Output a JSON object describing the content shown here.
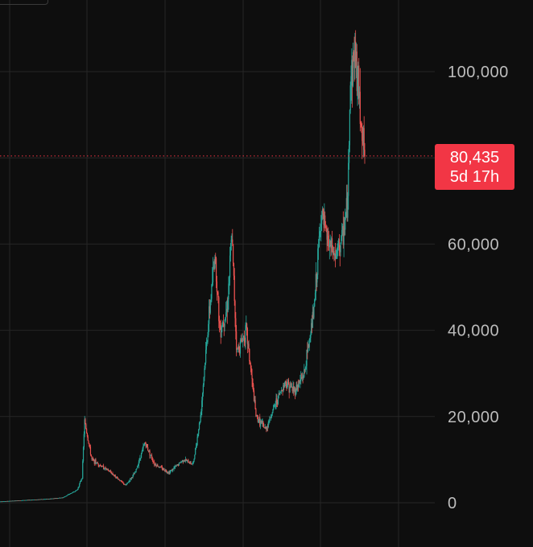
{
  "chart_data": {
    "type": "candlestick",
    "ylim": [
      0,
      110000
    ],
    "yticks": [
      {
        "value": 0,
        "label": "0"
      },
      {
        "value": 20000,
        "label": "20,000"
      },
      {
        "value": 40000,
        "label": "40,000"
      },
      {
        "value": 60000,
        "label": "60,000"
      },
      {
        "value": 100000,
        "label": "100,000"
      }
    ],
    "grid": true,
    "current_price": {
      "value": 80435,
      "label": "80,435",
      "countdown": "5d 17h"
    },
    "colors": {
      "up": "#26a69a",
      "down": "#ef5350",
      "background": "#0e0e0e",
      "grid": "#262626",
      "price_line": "#f23645"
    },
    "close_path": [
      [
        0,
        300
      ],
      [
        0.05,
        600
      ],
      [
        0.1,
        900
      ],
      [
        0.13,
        1200
      ],
      [
        0.16,
        3000
      ],
      [
        0.17,
        6000
      ],
      [
        0.175,
        19000
      ],
      [
        0.19,
        10000
      ],
      [
        0.23,
        7000
      ],
      [
        0.26,
        4000
      ],
      [
        0.28,
        7000
      ],
      [
        0.3,
        14000
      ],
      [
        0.32,
        9000
      ],
      [
        0.35,
        7000
      ],
      [
        0.38,
        10000
      ],
      [
        0.4,
        9000
      ],
      [
        0.415,
        20000
      ],
      [
        0.43,
        40000
      ],
      [
        0.445,
        58000
      ],
      [
        0.455,
        40000
      ],
      [
        0.47,
        45000
      ],
      [
        0.48,
        62000
      ],
      [
        0.49,
        35000
      ],
      [
        0.51,
        40000
      ],
      [
        0.53,
        20000
      ],
      [
        0.55,
        17000
      ],
      [
        0.57,
        23000
      ],
      [
        0.59,
        28000
      ],
      [
        0.61,
        26000
      ],
      [
        0.63,
        30000
      ],
      [
        0.65,
        45000
      ],
      [
        0.665,
        67000
      ],
      [
        0.68,
        60000
      ],
      [
        0.695,
        57000
      ],
      [
        0.71,
        62000
      ],
      [
        0.72,
        70000
      ],
      [
        0.725,
        98000
      ],
      [
        0.735,
        105000
      ],
      [
        0.745,
        92000
      ],
      [
        0.755,
        80435
      ]
    ]
  }
}
